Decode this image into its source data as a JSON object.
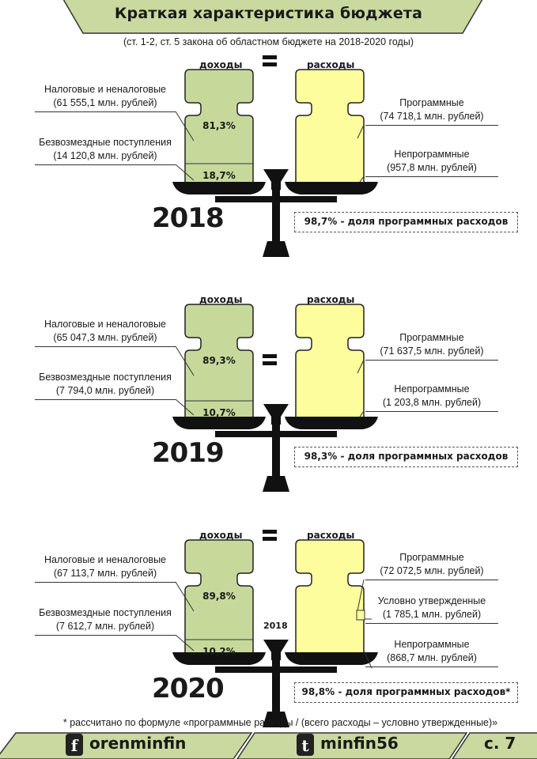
{
  "title": "Краткая характеристика бюджета",
  "subtitle": "(ст. 1-2, ст. 5 закона об областном бюджете на 2018-2020 годы)",
  "colors": {
    "revenue": "#c6d99b",
    "expense": "#fdfd9e",
    "banner": "#c9d99f",
    "ink": "#111111"
  },
  "revenue_header": "доходы",
  "expense_header": "расходы",
  "sections": [
    {
      "year": "2018",
      "revenue": [
        {
          "name": "Налоговые и неналоговые",
          "value": "(61 555,1 млн. рублей)",
          "pct": "81,3%"
        },
        {
          "name": "Безвозмездные поступления",
          "value": "(14 120,8 млн. рублей)",
          "pct": "18,7%"
        }
      ],
      "expense": [
        {
          "name": "Программные",
          "value": "(74 718,1 млн. рублей)"
        },
        {
          "name": "Непрограммные",
          "value": "(957,8 млн. рублей)"
        }
      ],
      "share": "98,7% - доля программных расходов"
    },
    {
      "year": "2019",
      "revenue": [
        {
          "name": "Налоговые и неналоговые",
          "value": "(65 047,3 млн. рублей)",
          "pct": "89,3%"
        },
        {
          "name": "Безвозмездные поступления",
          "value": "(7 794,0 млн. рублей)",
          "pct": "10,7%"
        }
      ],
      "expense": [
        {
          "name": "Программные",
          "value": "(71 637,5 млн. рублей)"
        },
        {
          "name": "Непрограммные",
          "value": "(1 203,8 млн. рублей)"
        }
      ],
      "share": "98,3% - доля программных расходов"
    },
    {
      "year": "2020",
      "scale_label": "2018",
      "revenue": [
        {
          "name": "Налоговые и неналоговые",
          "value": "(67 113,7 млн. рублей)",
          "pct": "89,8%"
        },
        {
          "name": "Безвозмездные поступления",
          "value": "(7 612,7 млн. рублей)",
          "pct": "10,2%"
        }
      ],
      "expense": [
        {
          "name": "Программные",
          "value": "(72 072,5 млн. рублей)"
        },
        {
          "name": "Условно утвержденные",
          "value": "(1 785,1 млн. рублей)"
        },
        {
          "name": "Непрограммные",
          "value": "(868,7 млн. рублей)"
        }
      ],
      "share": "98,8% - доля программных расходов*"
    }
  ],
  "footnote": "* рассчитано по формуле «программные расходы / (всего расходы – условно утвержденные)»",
  "footer": {
    "facebook": "orenminfin",
    "twitter": "minfin56",
    "page": "с. 7",
    "facebook_icon": "f",
    "twitter_icon": "t"
  }
}
